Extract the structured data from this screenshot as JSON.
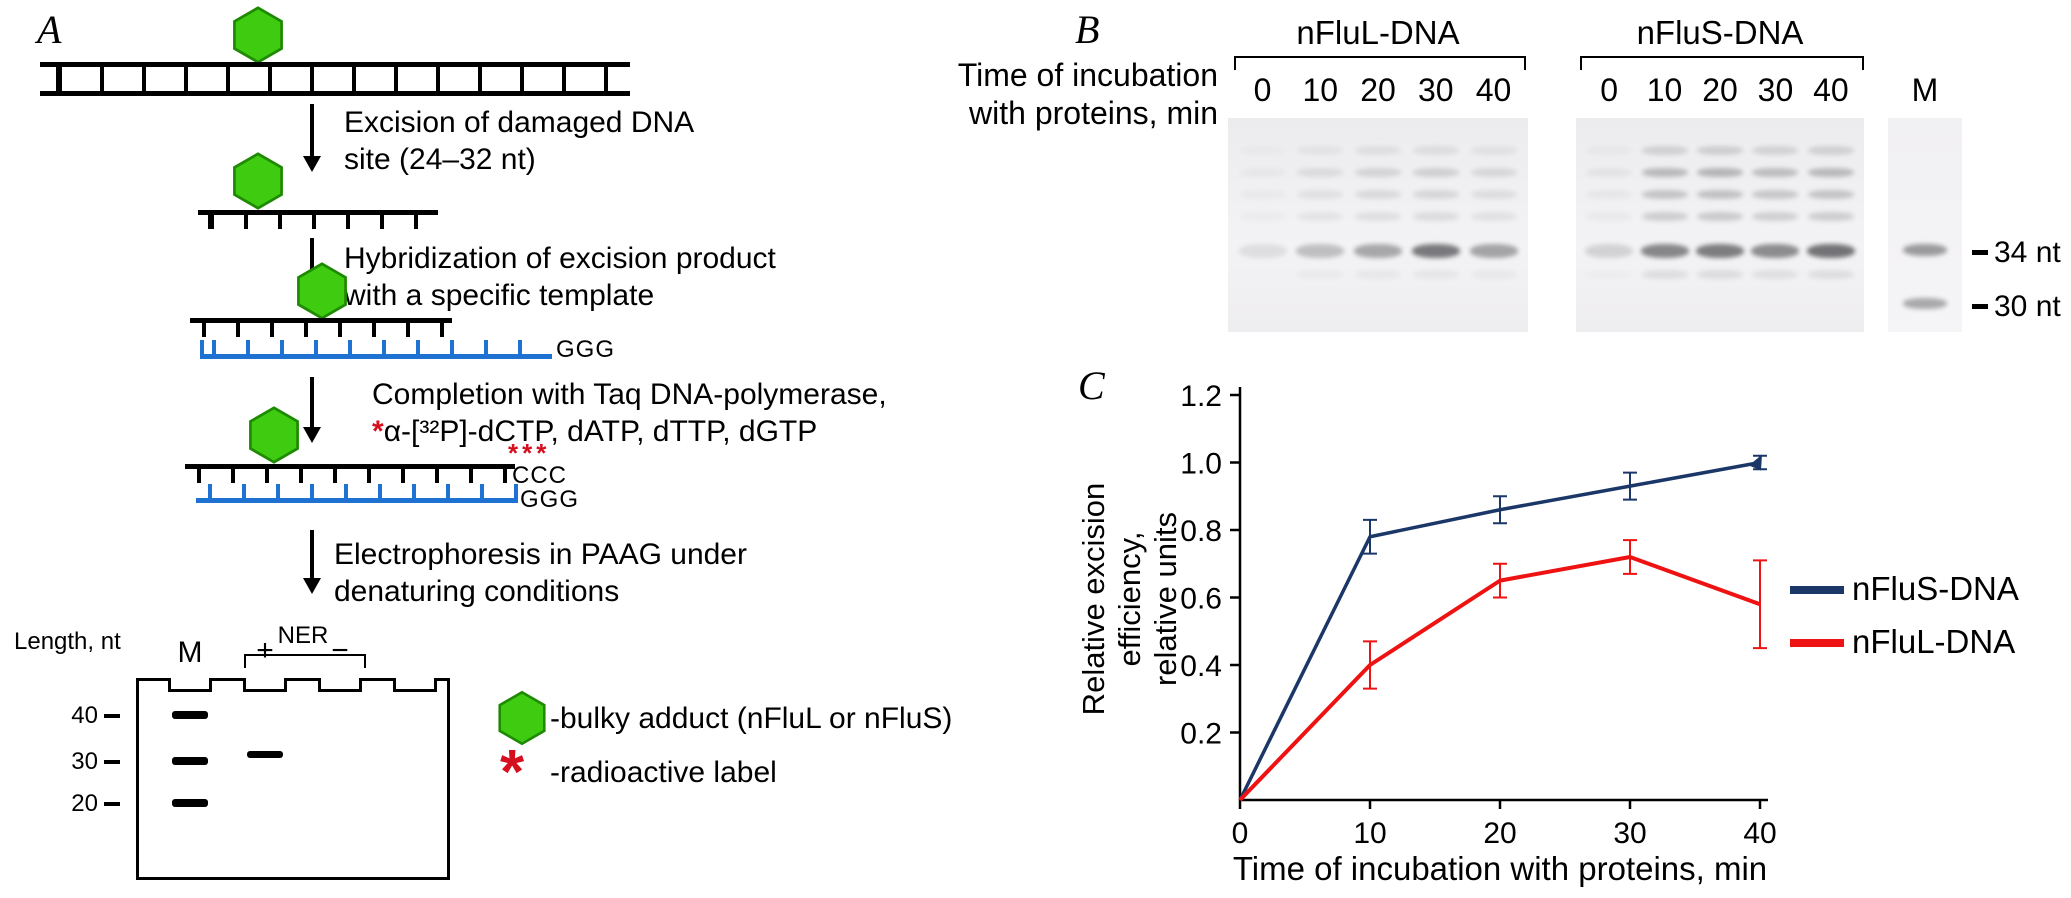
{
  "panelA": {
    "label": "A",
    "step1": {
      "line1": "Excision of damaged DNA",
      "line2": "site (24–32 nt)"
    },
    "step2": {
      "line1": "Hybridization of excision product",
      "line2": "with a specific template"
    },
    "step3": {
      "line1": "Completion with Taq DNA-polymerase,",
      "star": "*",
      "line2": "α-[³²P]-dCTP, dATP, dTTP, dGTP"
    },
    "step4": {
      "line1": "Electrophoresis in PAAG under",
      "line2": "denaturing conditions"
    },
    "ggg_top": "GGG",
    "ccc_stars": "***",
    "ccc": "CCC",
    "ggg_bottom": "GGG",
    "gel": {
      "length_label": "Length, nt",
      "ner_label": "NER",
      "lanes": {
        "m": "M",
        "plus": "+",
        "minus": "−"
      },
      "markers": [
        "40",
        "30",
        "20"
      ]
    },
    "legend": {
      "star": "*",
      "bulky_label": "-bulky adduct (nFluL or nFluS)",
      "radioactive_label": "-radioactive label"
    }
  },
  "panelB": {
    "label": "B",
    "row_label": {
      "line1": "Time of incubation",
      "line2": "with proteins, min"
    },
    "marker_lane_label": "M",
    "size_markers": [
      {
        "dash": "–",
        "text": "34 nt"
      },
      {
        "dash": "–",
        "text": "30 nt"
      }
    ],
    "gels": [
      {
        "title": "nFluL-DNA",
        "lane_labels": [
          "0",
          "10",
          "20",
          "30",
          "40"
        ],
        "main_band": [
          0.1,
          0.26,
          0.38,
          0.62,
          0.4
        ],
        "upper_bands": [
          0.04,
          0.1,
          0.14,
          0.16,
          0.12
        ]
      },
      {
        "title": "nFluS-DNA",
        "lane_labels": [
          "0",
          "10",
          "20",
          "30",
          "40"
        ],
        "main_band": [
          0.16,
          0.55,
          0.6,
          0.52,
          0.65
        ],
        "upper_bands": [
          0.06,
          0.28,
          0.3,
          0.26,
          0.28
        ]
      }
    ],
    "marker_lane_bands": [
      0.45,
      0.38
    ]
  },
  "panelC": {
    "label": "C"
  },
  "chart_data": {
    "type": "line",
    "x": [
      0,
      10,
      20,
      30,
      40
    ],
    "series": [
      {
        "name": "nFluS-DNA",
        "color": "#1b3768",
        "values": [
          0,
          0.78,
          0.86,
          0.93,
          1.0
        ],
        "errors": [
          0,
          0.05,
          0.04,
          0.04,
          0.02
        ]
      },
      {
        "name": "nFluL-DNA",
        "color": "#ee1212",
        "values": [
          0,
          0.4,
          0.65,
          0.72,
          0.58
        ],
        "errors": [
          0,
          0.07,
          0.05,
          0.05,
          0.13
        ]
      }
    ],
    "title": "",
    "xlabel": "Time of incubation with proteins, min",
    "ylabel": "Relative excision efficiency, relative units",
    "ylabel_lines": [
      "Relative excision",
      "efficiency,",
      "relative units"
    ],
    "xticks": [
      0,
      10,
      20,
      30,
      40
    ],
    "yticks": [
      0.2,
      0.4,
      0.6,
      0.8,
      1.0,
      1.2
    ],
    "xlim": [
      0,
      40
    ],
    "ylim": [
      0,
      1.2
    ],
    "grid": false,
    "legend_position": "right"
  }
}
